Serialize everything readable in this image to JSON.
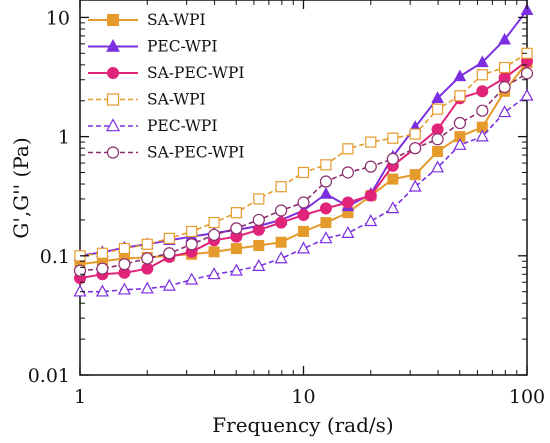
{
  "chart_data": {
    "type": "line",
    "title": "",
    "xlabel": "Frequency (rad/s)",
    "ylabel": "G',G'' (Pa)",
    "xscale": "log",
    "yscale": "log",
    "xlim": [
      1,
      100
    ],
    "ylim": [
      0.01,
      14
    ],
    "x_ticks": [
      1,
      10,
      100
    ],
    "x_tick_labels": [
      "1",
      "10",
      "100"
    ],
    "y_ticks": [
      0.01,
      0.1,
      1,
      10
    ],
    "y_tick_labels": [
      "0.01",
      "0.1",
      "1",
      "10"
    ],
    "grid": false,
    "legend_position": "top-left",
    "x": [
      1,
      1.26,
      1.58,
      2,
      2.51,
      3.16,
      3.98,
      5.01,
      6.31,
      7.94,
      10,
      12.6,
      15.8,
      20,
      25.1,
      31.6,
      39.8,
      50.1,
      63.1,
      79.4,
      100
    ],
    "series": [
      {
        "name": "SA-WPI",
        "color": "#E59A2C",
        "line": "solid",
        "marker": "square",
        "filled": true,
        "values": [
          0.085,
          0.09,
          0.095,
          0.097,
          0.1,
          0.103,
          0.108,
          0.115,
          0.122,
          0.13,
          0.16,
          0.19,
          0.23,
          0.32,
          0.44,
          0.48,
          0.75,
          1.0,
          1.2,
          2.4,
          4.2
        ]
      },
      {
        "name": "PEC-WPI",
        "color": "#7B2FE0",
        "line": "solid",
        "marker": "triangle",
        "filled": true,
        "values": [
          0.1,
          0.107,
          0.117,
          0.125,
          0.135,
          0.145,
          0.155,
          0.165,
          0.178,
          0.2,
          0.24,
          0.33,
          0.26,
          0.33,
          0.68,
          1.2,
          2.1,
          3.2,
          4.2,
          6.5,
          11.5
        ]
      },
      {
        "name": "SA-PEC-WPI",
        "color": "#E0247A",
        "line": "solid",
        "marker": "circle",
        "filled": true,
        "values": [
          0.065,
          0.07,
          0.072,
          0.078,
          0.098,
          0.108,
          0.135,
          0.145,
          0.165,
          0.19,
          0.22,
          0.25,
          0.28,
          0.32,
          0.57,
          0.8,
          1.15,
          2.1,
          2.4,
          3.1,
          4.3
        ]
      },
      {
        "name": "SA-WPI",
        "color": "#E59A2C",
        "line": "dashed",
        "marker": "square",
        "filled": false,
        "values": [
          0.1,
          0.105,
          0.115,
          0.125,
          0.14,
          0.16,
          0.19,
          0.23,
          0.3,
          0.38,
          0.5,
          0.58,
          0.79,
          0.9,
          0.97,
          1.05,
          1.7,
          2.2,
          3.3,
          3.8,
          5.0
        ]
      },
      {
        "name": "PEC-WPI",
        "color": "#7B2FE0",
        "line": "dashed",
        "marker": "triangle",
        "filled": false,
        "values": [
          0.05,
          0.05,
          0.052,
          0.053,
          0.056,
          0.063,
          0.07,
          0.075,
          0.082,
          0.095,
          0.115,
          0.14,
          0.155,
          0.195,
          0.25,
          0.38,
          0.55,
          0.85,
          1.0,
          1.6,
          2.2
        ]
      },
      {
        "name": "SA-PEC-WPI",
        "color": "#8B2E6E",
        "line": "dashed",
        "marker": "circle",
        "filled": false,
        "values": [
          0.075,
          0.078,
          0.085,
          0.095,
          0.105,
          0.125,
          0.15,
          0.17,
          0.2,
          0.24,
          0.28,
          0.42,
          0.5,
          0.56,
          0.65,
          0.8,
          0.95,
          1.3,
          1.65,
          2.6,
          3.4
        ]
      }
    ]
  }
}
